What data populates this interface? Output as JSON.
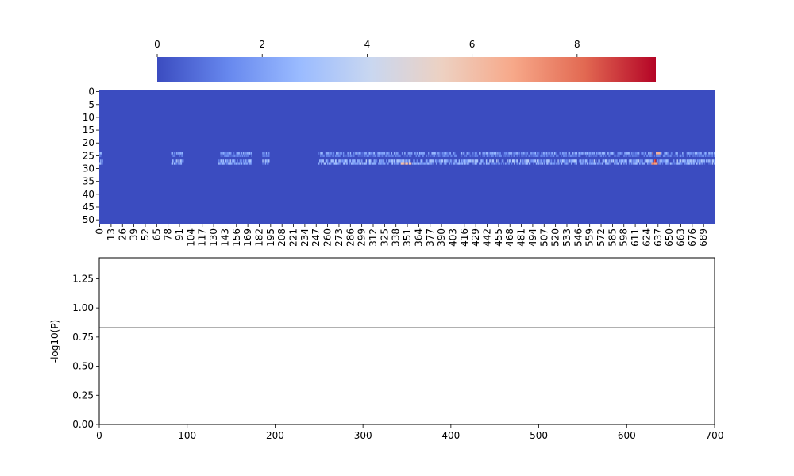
{
  "chart_data": [
    {
      "type": "heatmap",
      "title": "",
      "xlabel": "",
      "ylabel": "",
      "rows": 52,
      "cols": 702,
      "x_ticks": [
        0,
        13,
        26,
        39,
        52,
        65,
        78,
        91,
        104,
        117,
        130,
        143,
        156,
        169,
        182,
        195,
        208,
        221,
        234,
        247,
        260,
        273,
        286,
        299,
        312,
        325,
        338,
        351,
        364,
        377,
        390,
        403,
        416,
        429,
        442,
        455,
        468,
        481,
        494,
        507,
        520,
        533,
        546,
        559,
        572,
        585,
        598,
        611,
        624,
        637,
        650,
        663,
        676,
        689
      ],
      "y_ticks": [
        0,
        5,
        10,
        15,
        20,
        25,
        30,
        35,
        40,
        45,
        50
      ],
      "colormap": "coolwarm",
      "color_range": [
        0,
        9.5
      ],
      "colorbar_ticks": [
        0,
        2,
        4,
        6,
        8
      ],
      "colorbar_orientation": "horizontal",
      "colorbar_placement": "top",
      "background_value": 0,
      "active_rows": [
        24,
        25,
        27,
        28
      ],
      "active_column_spans": [
        [
          0,
          4
        ],
        [
          82,
          96
        ],
        [
          136,
          174
        ],
        [
          186,
          194
        ],
        [
          250,
          702
        ]
      ],
      "hotspots": [
        {
          "row": 28,
          "col_start": 344,
          "col_end": 356,
          "value": 6.5
        },
        {
          "row": 24,
          "col_start": 630,
          "col_end": 640,
          "value": 7.0
        },
        {
          "row": 27,
          "col_start": 632,
          "col_end": 636,
          "value": 9.0
        },
        {
          "row": 28,
          "col_start": 630,
          "col_end": 638,
          "value": 8.0
        }
      ]
    },
    {
      "type": "line",
      "title": "",
      "xlabel": "",
      "ylabel": "-log10(P)",
      "xlim": [
        0,
        700
      ],
      "ylim": [
        0,
        1.43
      ],
      "x_ticks": [
        0,
        100,
        200,
        300,
        400,
        500,
        600,
        700
      ],
      "y_ticks": [
        "0.00",
        "0.25",
        "0.50",
        "0.75",
        "1.00",
        "1.25"
      ],
      "grid": false,
      "series": [
        {
          "color": "#808080",
          "x": [
            0,
            700
          ],
          "y": [
            0.83,
            0.83
          ]
        }
      ]
    }
  ],
  "colors": {
    "axis": "#000000",
    "threshold_line": "#808080",
    "cmap_stops": [
      "#3b4cc0",
      "#6788ee",
      "#9abbff",
      "#c9d7f0",
      "#edd1c2",
      "#f7a889",
      "#e26952",
      "#b40426"
    ]
  }
}
